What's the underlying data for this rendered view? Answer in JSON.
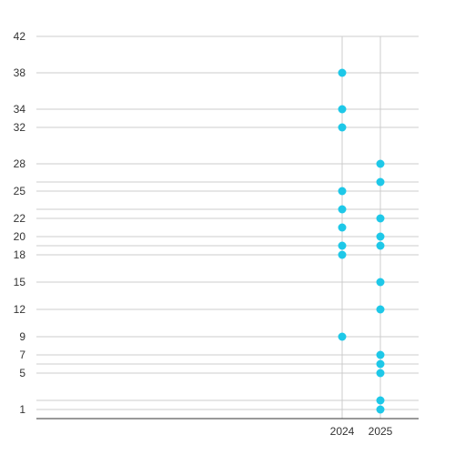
{
  "chart_data": {
    "type": "scatter",
    "title": "",
    "xlabel": "",
    "ylabel": "",
    "categories": [
      "2024",
      "2025"
    ],
    "y_ticks": [
      1,
      5,
      7,
      9,
      12,
      15,
      18,
      20,
      22,
      25,
      28,
      32,
      34,
      38,
      42
    ],
    "ylim": [
      0,
      42
    ],
    "gridlines_extra": [
      2,
      6,
      19,
      23,
      26
    ],
    "points": {
      "2024": [
        9,
        18,
        19,
        21,
        23,
        25,
        32,
        34,
        38
      ],
      "2025": [
        1,
        2,
        5,
        6,
        7,
        12,
        15,
        19,
        20,
        22,
        26,
        28
      ]
    },
    "colors": {
      "marker": "#1EC8E8",
      "grid": "#cccccc",
      "axis": "#333333"
    },
    "grid": true
  }
}
